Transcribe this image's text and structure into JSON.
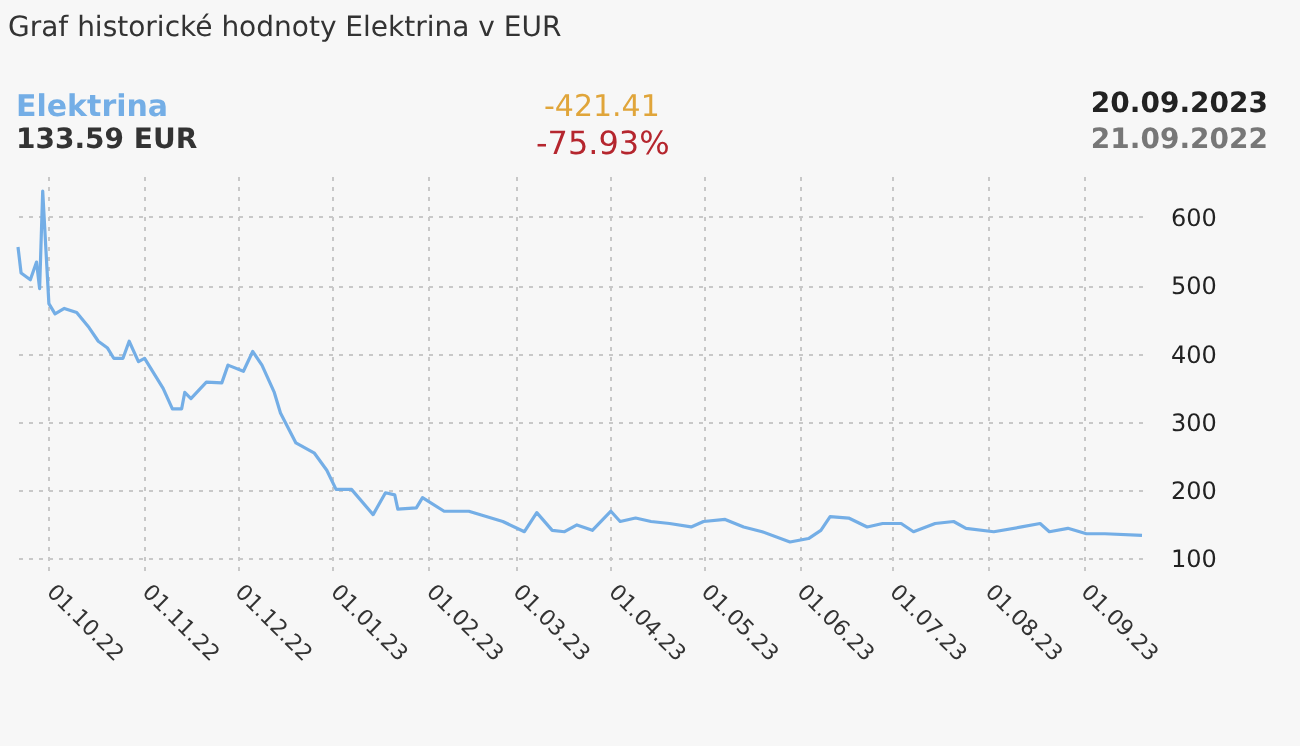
{
  "chart_data": {
    "type": "line",
    "title": "Graf historické hodnoty Elektrina v EUR",
    "annotations": [
      "133.59 EUR",
      "-421.41",
      "-75.93%",
      "20.09.2023",
      "21.09.2022"
    ],
    "x": [
      "2022-09-21",
      "2022-09-22",
      "2022-09-25",
      "2022-09-27",
      "2022-09-28",
      "2022-09-29",
      "2022-10-01",
      "2022-10-03",
      "2022-10-06",
      "2022-10-10",
      "2022-10-14",
      "2022-10-17",
      "2022-10-20",
      "2022-10-22",
      "2022-10-25",
      "2022-10-27",
      "2022-10-30",
      "2022-11-01",
      "2022-11-07",
      "2022-11-10",
      "2022-11-13",
      "2022-11-14",
      "2022-11-16",
      "2022-11-21",
      "2022-11-26",
      "2022-11-28",
      "2022-12-03",
      "2022-12-06",
      "2022-12-09",
      "2022-12-13",
      "2022-12-15",
      "2022-12-20",
      "2022-12-26",
      "2022-12-30",
      "2023-01-02",
      "2023-01-07",
      "2023-01-14",
      "2023-01-18",
      "2023-01-21",
      "2023-01-22",
      "2023-01-28",
      "2023-01-30",
      "2023-02-06",
      "2023-02-14",
      "2023-02-25",
      "2023-03-04",
      "2023-03-08",
      "2023-03-13",
      "2023-03-17",
      "2023-03-21",
      "2023-03-26",
      "2023-04-01",
      "2023-04-04",
      "2023-04-09",
      "2023-04-14",
      "2023-04-20",
      "2023-04-27",
      "2023-05-01",
      "2023-05-08",
      "2023-05-14",
      "2023-05-20",
      "2023-05-29",
      "2023-06-04",
      "2023-06-08",
      "2023-06-11",
      "2023-06-17",
      "2023-06-23",
      "2023-06-28",
      "2023-07-04",
      "2023-07-08",
      "2023-07-15",
      "2023-07-21",
      "2023-07-25",
      "2023-08-03",
      "2023-08-12",
      "2023-08-18",
      "2023-08-21",
      "2023-08-27",
      "2023-09-02",
      "2023-09-08",
      "2023-09-20"
    ],
    "series": [
      {
        "name": "Elektrina",
        "color": "#74aee6",
        "values": [
          556,
          518,
          508,
          534,
          495,
          638,
          473,
          458,
          466,
          460,
          438,
          418,
          408,
          393,
          393,
          418,
          388,
          393,
          349,
          319,
          319,
          343,
          334,
          358,
          357,
          383,
          374,
          403,
          383,
          343,
          313,
          269,
          254,
          229,
          201,
          201,
          164,
          196,
          193,
          172,
          174,
          189,
          169,
          169,
          154,
          139,
          167,
          141,
          139,
          149,
          141,
          169,
          154,
          159,
          154,
          151,
          146,
          154,
          157,
          146,
          139,
          124,
          129,
          141,
          161,
          159,
          146,
          151,
          151,
          139,
          151,
          154,
          144,
          139,
          146,
          151,
          139,
          144,
          136,
          136,
          133.59
        ]
      }
    ],
    "xlim": [
      "2022-09-21",
      "2023-09-20"
    ],
    "xticks": [
      {
        "value": "2022-10-01",
        "label": "01.10.22"
      },
      {
        "value": "2022-11-01",
        "label": "01.11.22"
      },
      {
        "value": "2022-12-01",
        "label": "01.12.22"
      },
      {
        "value": "2023-01-01",
        "label": "01.01.23"
      },
      {
        "value": "2023-02-01",
        "label": "01.02.23"
      },
      {
        "value": "2023-03-01",
        "label": "01.03.23"
      },
      {
        "value": "2023-04-01",
        "label": "01.04.23"
      },
      {
        "value": "2023-05-01",
        "label": "01.05.23"
      },
      {
        "value": "2023-06-01",
        "label": "01.06.23"
      },
      {
        "value": "2023-07-01",
        "label": "01.07.23"
      },
      {
        "value": "2023-08-01",
        "label": "01.08.23"
      },
      {
        "value": "2023-09-01",
        "label": "01.09.23"
      }
    ],
    "ylim": [
      80,
      660
    ],
    "yticks": [
      100,
      200,
      300,
      400,
      500,
      600
    ],
    "grid": true,
    "marker": "none",
    "line_style": "solid"
  }
}
